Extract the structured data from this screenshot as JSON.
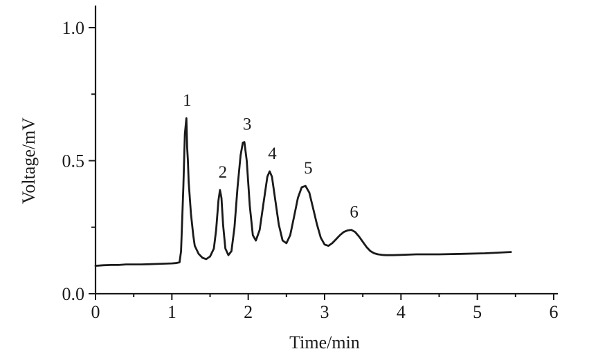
{
  "chart_data": {
    "type": "line",
    "title": "",
    "xlabel": "Time/min",
    "ylabel": "Voltage/mV",
    "xlim": [
      0,
      6
    ],
    "ylim": [
      0,
      1.0
    ],
    "x_ticks": [
      "0",
      "1",
      "2",
      "3",
      "4",
      "5",
      "6"
    ],
    "y_ticks": [
      "0.0",
      "0.5",
      "1.0"
    ],
    "grid": false,
    "line_color": "#1a1a1a",
    "series": [
      {
        "x": [
          0.0,
          0.1,
          0.2,
          0.3,
          0.4,
          0.5,
          0.6,
          0.7,
          0.8,
          0.9,
          1.0,
          1.05,
          1.1,
          1.12,
          1.15,
          1.17,
          1.19,
          1.2,
          1.21,
          1.22,
          1.25,
          1.28,
          1.3,
          1.35,
          1.4,
          1.45,
          1.5,
          1.55,
          1.58,
          1.61,
          1.63,
          1.65,
          1.67,
          1.7,
          1.74,
          1.78,
          1.82,
          1.86,
          1.9,
          1.93,
          1.95,
          1.98,
          2.02,
          2.06,
          2.1,
          2.15,
          2.2,
          2.25,
          2.28,
          2.31,
          2.35,
          2.4,
          2.45,
          2.5,
          2.55,
          2.6,
          2.65,
          2.7,
          2.75,
          2.8,
          2.85,
          2.9,
          2.95,
          3.0,
          3.05,
          3.1,
          3.15,
          3.2,
          3.25,
          3.3,
          3.35,
          3.4,
          3.45,
          3.5,
          3.55,
          3.6,
          3.65,
          3.7,
          3.75,
          3.8,
          3.9,
          4.0,
          4.2,
          4.5,
          4.8,
          5.1,
          5.44
        ],
        "y": [
          0.105,
          0.107,
          0.108,
          0.108,
          0.11,
          0.11,
          0.11,
          0.111,
          0.112,
          0.113,
          0.114,
          0.115,
          0.118,
          0.16,
          0.4,
          0.6,
          0.66,
          0.55,
          0.5,
          0.42,
          0.3,
          0.22,
          0.18,
          0.15,
          0.135,
          0.13,
          0.14,
          0.17,
          0.24,
          0.35,
          0.39,
          0.36,
          0.26,
          0.17,
          0.145,
          0.16,
          0.25,
          0.4,
          0.52,
          0.568,
          0.57,
          0.5,
          0.33,
          0.22,
          0.2,
          0.24,
          0.34,
          0.44,
          0.46,
          0.44,
          0.36,
          0.26,
          0.2,
          0.19,
          0.22,
          0.29,
          0.36,
          0.4,
          0.405,
          0.38,
          0.32,
          0.26,
          0.21,
          0.185,
          0.18,
          0.19,
          0.205,
          0.22,
          0.232,
          0.238,
          0.24,
          0.232,
          0.215,
          0.195,
          0.175,
          0.16,
          0.152,
          0.148,
          0.146,
          0.145,
          0.145,
          0.146,
          0.148,
          0.148,
          0.15,
          0.152,
          0.157
        ]
      }
    ],
    "annotations": [
      {
        "text": "1",
        "x": 1.2,
        "y": 0.66
      },
      {
        "text": "2",
        "x": 1.63,
        "y": 0.39
      },
      {
        "text": "3",
        "x": 1.95,
        "y": 0.57
      },
      {
        "text": "4",
        "x": 2.28,
        "y": 0.46
      },
      {
        "text": "5",
        "x": 2.75,
        "y": 0.405
      },
      {
        "text": "6",
        "x": 3.35,
        "y": 0.24
      }
    ]
  }
}
